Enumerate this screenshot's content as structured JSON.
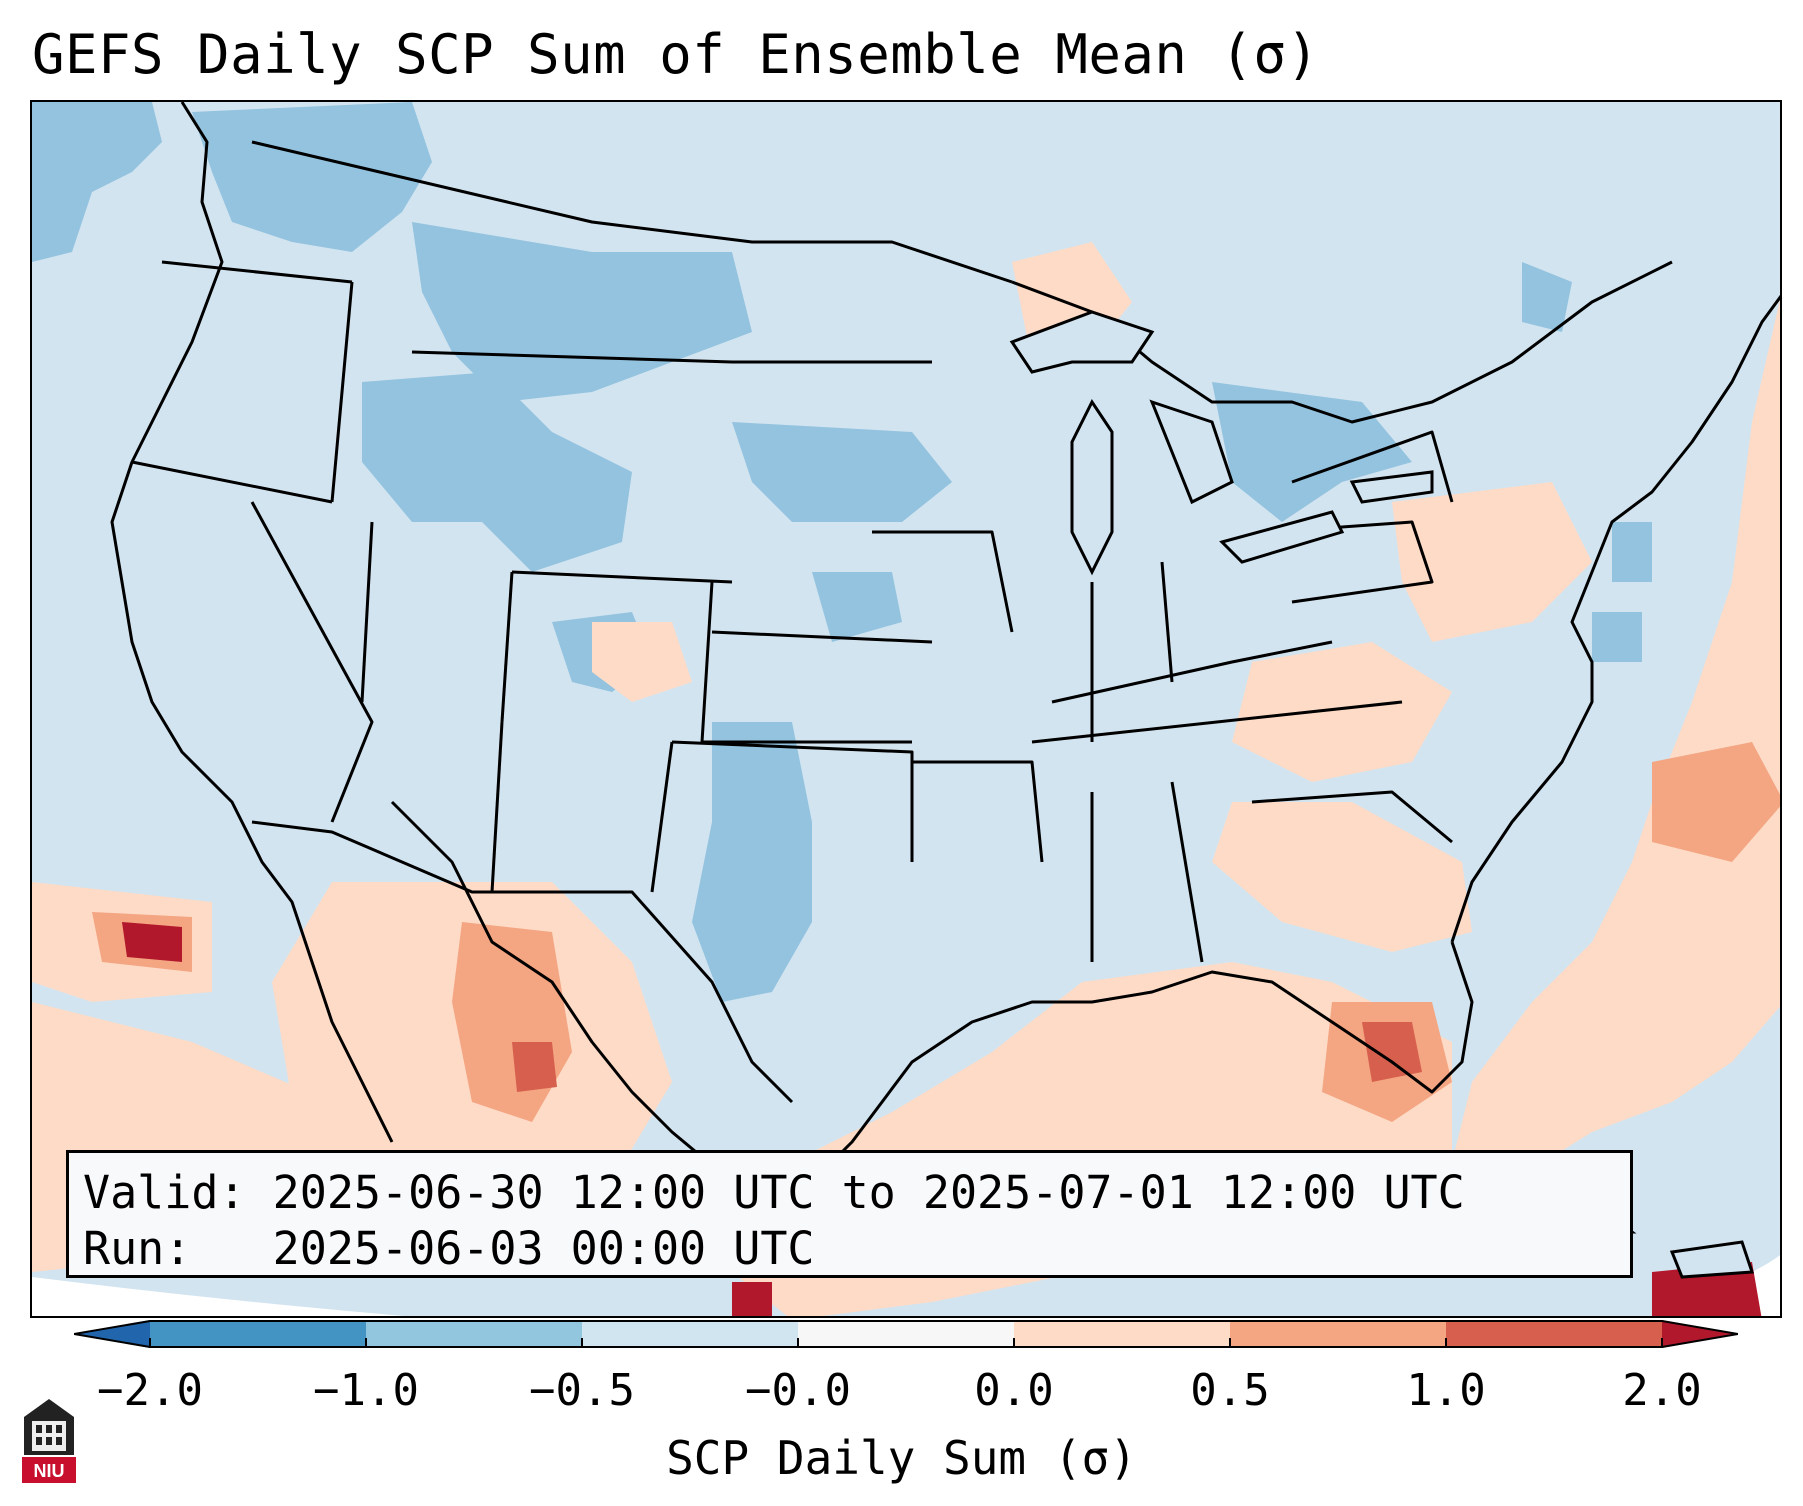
{
  "title": "GEFS Daily SCP Sum of Ensemble Mean (σ)",
  "info": {
    "valid_label": "Valid:",
    "valid_value": "2025-06-30 12:00 UTC to 2025-07-01 12:00 UTC",
    "run_label": "Run:",
    "run_value": "2025-06-03 00:00 UTC"
  },
  "colorbar": {
    "title": "SCP Daily Sum (σ)",
    "ticks": [
      "−2.0",
      "−1.0",
      "−0.5",
      "−0.0",
      "0.0",
      "0.5",
      "1.0",
      "2.0"
    ],
    "colors": [
      "#4393c3",
      "#92c5de",
      "#d1e5f0",
      "#f7f7f7",
      "#fddbc7",
      "#f4a582",
      "#d6604d"
    ],
    "extend_low_color": "#2166ac",
    "extend_high_color": "#b2182b"
  },
  "logo": {
    "text": "NIU",
    "icon": "university-seal-icon"
  },
  "map": {
    "background_color": "#d2e4f0",
    "ocean_outside_color": "#ffffff",
    "line_color": "#000000"
  }
}
